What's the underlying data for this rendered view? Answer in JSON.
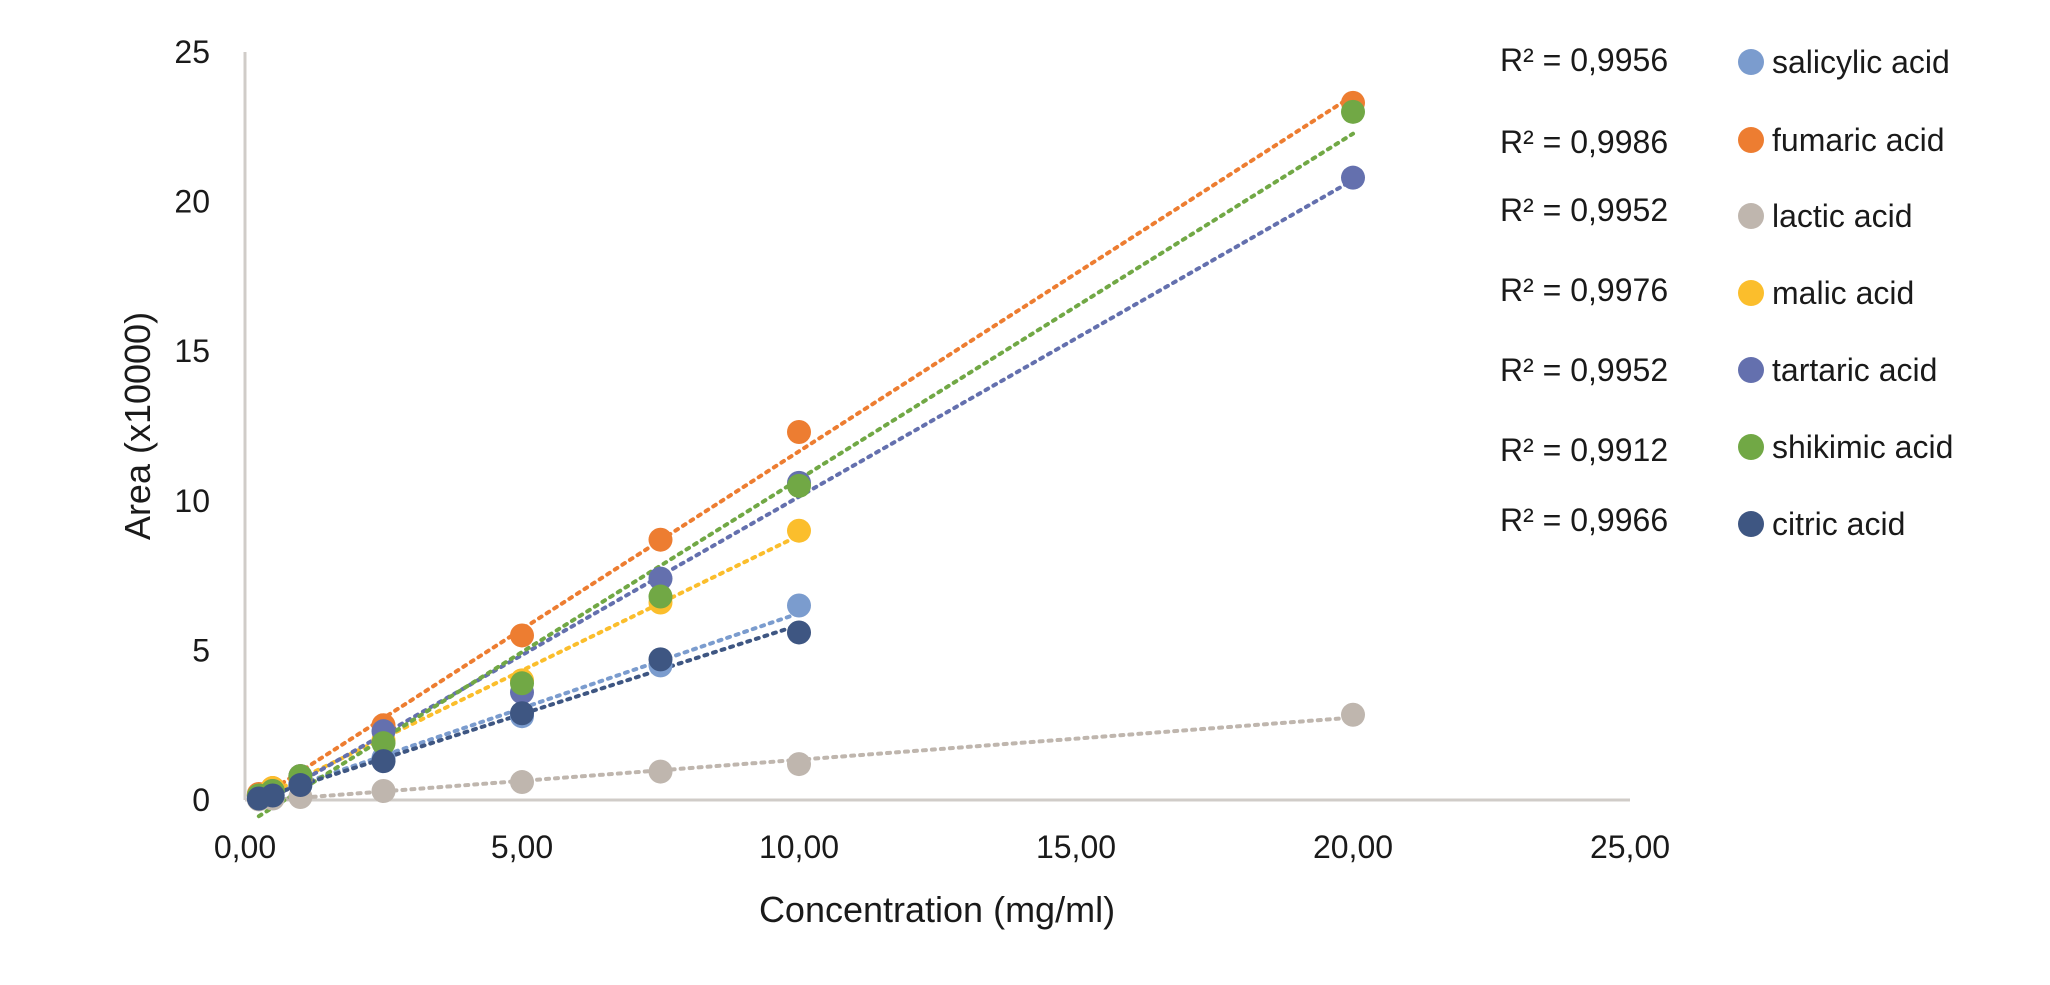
{
  "chart_data": {
    "type": "scatter",
    "title": "",
    "xlabel": "Concentration (mg/ml)",
    "ylabel": "Area (x10000)",
    "xlim": [
      0,
      25
    ],
    "ylim": [
      0,
      25
    ],
    "x_ticks": [
      "0,00",
      "5,00",
      "10,00",
      "15,00",
      "20,00",
      "25,00"
    ],
    "y_ticks": [
      "0",
      "5",
      "10",
      "15",
      "20",
      "25"
    ],
    "grid": false,
    "legend_position": "right",
    "trendline": "linear-dotted",
    "series": [
      {
        "name": "salicylic acid",
        "color": "#7b9cce",
        "r2_label": "R² = 0,9956",
        "x": [
          0.25,
          0.5,
          1,
          2.5,
          5,
          7.5,
          10
        ],
        "y": [
          0.15,
          0.3,
          0.6,
          1.4,
          2.8,
          4.5,
          6.5
        ]
      },
      {
        "name": "fumaric acid",
        "color": "#ed7d31",
        "r2_label": "R² = 0,9986",
        "x": [
          0.25,
          0.5,
          1,
          2.5,
          5,
          7.5,
          10,
          20
        ],
        "y": [
          0.2,
          0.4,
          0.8,
          2.5,
          5.5,
          8.7,
          12.3,
          23.3
        ]
      },
      {
        "name": "lactic acid",
        "color": "#bfb6ae",
        "r2_label": "R² = 0,9952",
        "x": [
          0.25,
          0.5,
          1,
          2.5,
          5,
          7.5,
          10,
          20
        ],
        "y": [
          0.02,
          0.05,
          0.1,
          0.3,
          0.6,
          0.95,
          1.2,
          2.85
        ]
      },
      {
        "name": "malic acid",
        "color": "#fbbe2c",
        "r2_label": "R² = 0,9976",
        "x": [
          0.25,
          0.5,
          1,
          2.5,
          5,
          7.5,
          10
        ],
        "y": [
          0.15,
          0.4,
          0.7,
          2.0,
          4.0,
          6.6,
          9.0
        ]
      },
      {
        "name": "tartaric acid",
        "color": "#6470ae",
        "r2_label": "R² = 0,9952",
        "x": [
          0.25,
          0.5,
          1,
          2.5,
          5,
          7.5,
          10,
          20
        ],
        "y": [
          0.1,
          0.3,
          0.8,
          2.3,
          3.6,
          7.4,
          10.6,
          20.8
        ]
      },
      {
        "name": "shikimic acid",
        "color": "#71a845",
        "r2_label": "R² = 0,9912",
        "x": [
          0.25,
          0.5,
          1,
          2.5,
          5,
          7.5,
          10,
          20
        ],
        "y": [
          0.15,
          0.3,
          0.8,
          1.9,
          3.9,
          6.8,
          10.5,
          23.0
        ]
      },
      {
        "name": "citric acid",
        "color": "#3e5682",
        "r2_label": "R² = 0,9966",
        "x": [
          0.25,
          0.5,
          1,
          2.5,
          5,
          7.5,
          10
        ],
        "y": [
          0.05,
          0.15,
          0.5,
          1.3,
          2.9,
          4.7,
          5.6
        ]
      }
    ]
  }
}
